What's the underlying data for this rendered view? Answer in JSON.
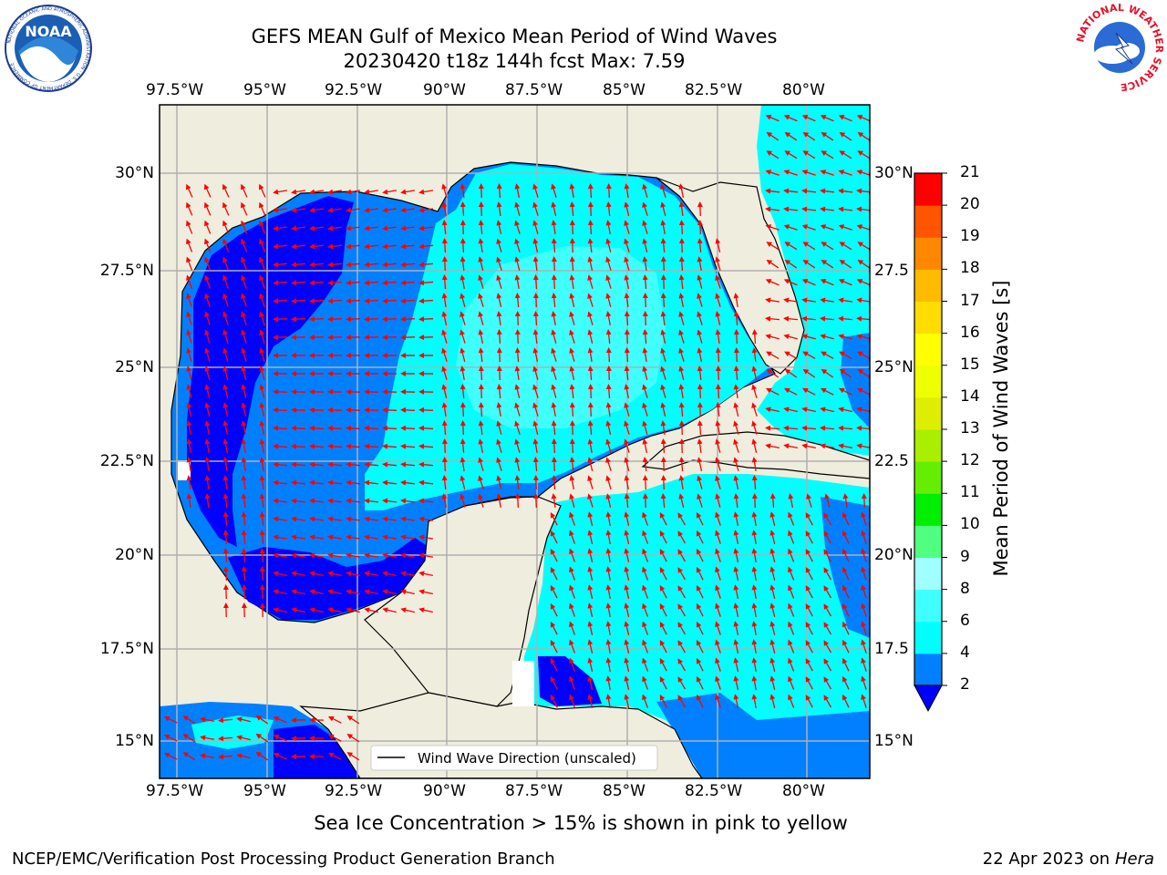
{
  "title_line1": "GEFS MEAN Gulf of Mexico Mean Period of Wind Waves",
  "title_line2": "20230420 t18z 144h fcst   Max: 7.59",
  "logos": {
    "left": "NOAA",
    "left_ring": "NATIONAL OCEANIC AND ATMOSPHERIC ADMINISTRATION · U.S. DEPARTMENT OF COMMERCE",
    "right_ring": "NATIONAL WEATHER SERVICE"
  },
  "lon_ticks": [
    "97.5°W",
    "95°W",
    "92.5°W",
    "90°W",
    "87.5°W",
    "85°W",
    "82.5°W",
    "80°W"
  ],
  "lat_ticks_left": [
    "30°N",
    "27.5°N",
    "25°N",
    "22.5°N",
    "20°N",
    "17.5°N",
    "15°N"
  ],
  "lat_ticks_right": [
    "30°N",
    "27.5",
    "25°N",
    "22.5",
    "20°N",
    "17.5",
    "15°N"
  ],
  "legend": {
    "label": "Wind Wave Direction (unscaled)"
  },
  "colorbar": {
    "label": "Mean Period of Wind Waves [s]",
    "ticks": [
      "2",
      "4",
      "6",
      "8",
      "9",
      "10",
      "11",
      "12",
      "13",
      "14",
      "15",
      "16",
      "17",
      "18",
      "19",
      "20",
      "21"
    ],
    "colors": [
      "#0080ff",
      "#00ffff",
      "#40ffff",
      "#a0ffff",
      "#50ff80",
      "#00ee00",
      "#66ee00",
      "#aaee00",
      "#ddee00",
      "#eeff00",
      "#ffff00",
      "#ffdd00",
      "#ffbb00",
      "#ff8800",
      "#ff5500",
      "#ff0000"
    ],
    "under_color": "#0000ff"
  },
  "colors": {
    "land": "#efedde",
    "band_2_4": "#0080ff",
    "band_4_6": "#00ffff",
    "band_6_8": "#40ffff",
    "band_lt2": "#0000ff",
    "arrows": "#ff0000"
  },
  "map_data": {
    "extent_lon": [
      -98.5,
      -78.75
    ],
    "extent_lat": [
      14.0,
      31.75
    ],
    "max_value": 7.59
  },
  "subtitle": "Sea Ice Concentration > 15% is shown in pink to yellow",
  "footer_left": "NCEP/EMC/Verification Post Processing Product Generation Branch",
  "footer_right_date": "22 Apr 2023 on ",
  "footer_right_host": "Hera"
}
